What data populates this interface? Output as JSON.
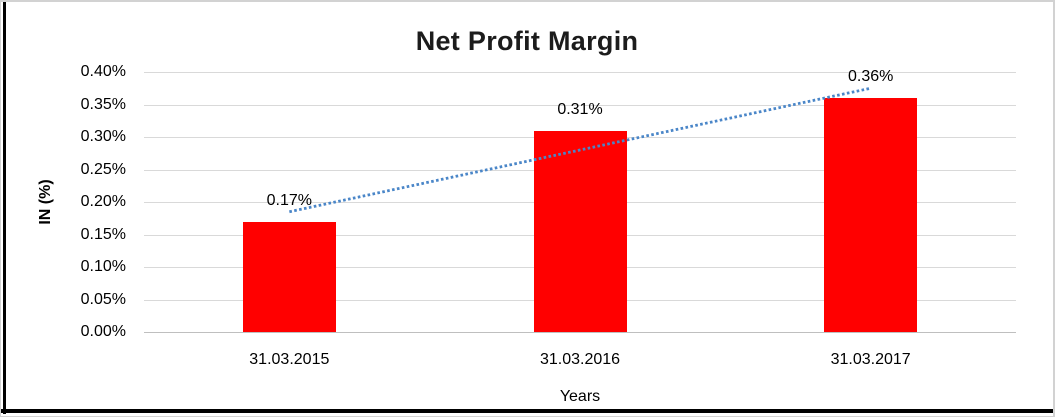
{
  "chart_data": {
    "type": "bar",
    "title": "Net Profit Margin",
    "xlabel": "Years",
    "ylabel": "IN (%)",
    "categories": [
      "31.03.2015",
      "31.03.2016",
      "31.03.2017"
    ],
    "values": [
      0.17,
      0.31,
      0.36
    ],
    "data_labels": [
      "0.17%",
      "0.31%",
      "0.36%"
    ],
    "yticks": [
      {
        "label": "0.00%",
        "value": 0.0
      },
      {
        "label": "0.05%",
        "value": 0.05
      },
      {
        "label": "0.10%",
        "value": 0.1
      },
      {
        "label": "0.15%",
        "value": 0.15
      },
      {
        "label": "0.20%",
        "value": 0.2
      },
      {
        "label": "0.25%",
        "value": 0.25
      },
      {
        "label": "0.30%",
        "value": 0.3
      },
      {
        "label": "0.35%",
        "value": 0.35
      },
      {
        "label": "0.40%",
        "value": 0.4
      }
    ],
    "ylim": [
      0,
      0.4
    ],
    "grid": true,
    "legend": "none",
    "bar_color": "#ff0000",
    "gridline_color": "#d9d9d9",
    "axis_line_color": "#bfbfbf",
    "trendline": {
      "type": "linear",
      "style": "dotted",
      "color": "#4a86c8"
    }
  }
}
